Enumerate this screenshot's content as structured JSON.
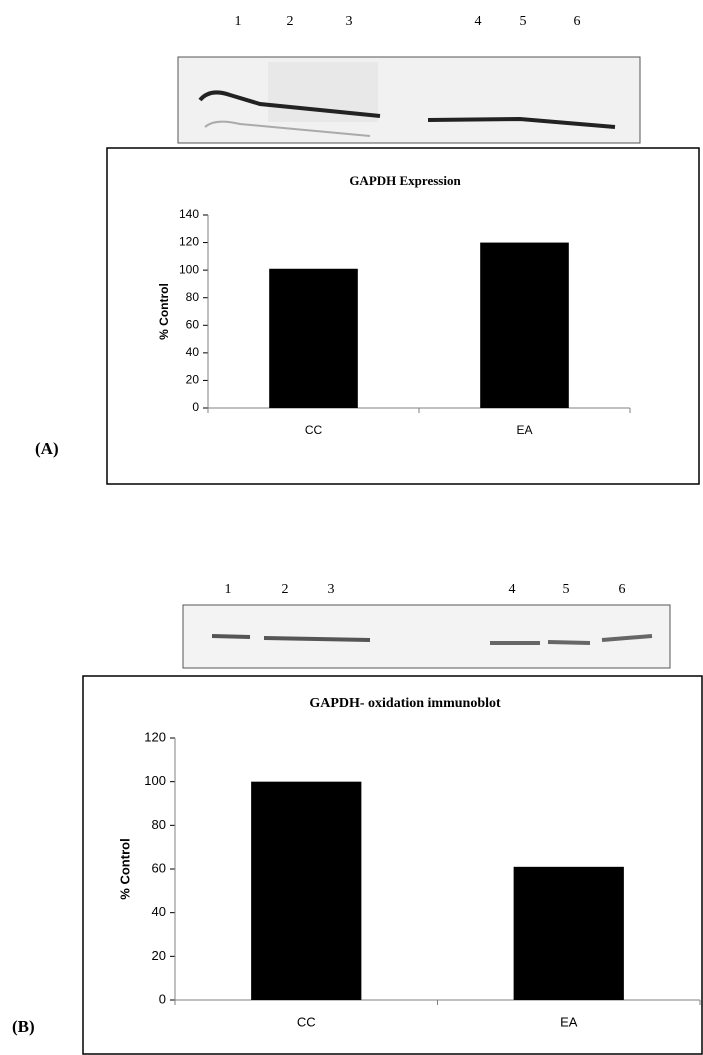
{
  "panels": [
    {
      "label": "(A)",
      "lanes": [
        "1",
        "2",
        "3",
        "4",
        "5",
        "6"
      ]
    },
    {
      "label": "(B)",
      "lanes": [
        "1",
        "2",
        "3",
        "4",
        "5",
        "6"
      ]
    }
  ],
  "chart_data": [
    {
      "type": "bar",
      "title": "GAPDH Expression",
      "y_label": "% Control",
      "categories": [
        "CC",
        "EA"
      ],
      "values": [
        101,
        120
      ],
      "color": "#000000",
      "ylim": [
        0,
        140
      ],
      "yticks": [
        0,
        20,
        40,
        60,
        80,
        100,
        120,
        140
      ],
      "grid": false
    },
    {
      "type": "bar",
      "title": "GAPDH- oxidation immunoblot",
      "y_label": "% Control",
      "categories": [
        "CC",
        "EA"
      ],
      "values": [
        100,
        61
      ],
      "color": "#000000",
      "ylim": [
        0,
        120
      ],
      "yticks": [
        0,
        20,
        40,
        60,
        80,
        100,
        120
      ],
      "grid": false
    }
  ]
}
